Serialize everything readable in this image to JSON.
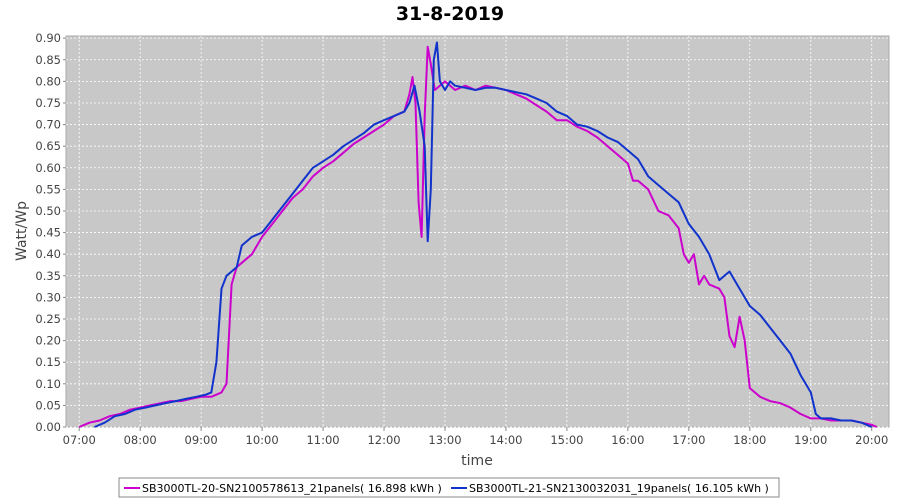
{
  "chart_data": {
    "type": "line",
    "title": "31-8-2019",
    "xlabel": "time",
    "ylabel": "Watt/Wp",
    "x_ticks": [
      "07:00",
      "08:00",
      "09:00",
      "10:00",
      "11:00",
      "12:00",
      "13:00",
      "14:00",
      "15:00",
      "16:00",
      "17:00",
      "18:00",
      "19:00",
      "20:00"
    ],
    "x_range": [
      "06:47",
      "20:17"
    ],
    "y_ticks": [
      "0.00",
      "0.05",
      "0.10",
      "0.15",
      "0.20",
      "0.25",
      "0.30",
      "0.35",
      "0.40",
      "0.45",
      "0.50",
      "0.55",
      "0.60",
      "0.65",
      "0.70",
      "0.75",
      "0.80",
      "0.85",
      "0.90"
    ],
    "ylim": [
      0,
      0.905
    ],
    "grid": true,
    "legend_position": "bottom",
    "series": [
      {
        "name": "SB3000TL-20-SN2100578613_21panels( 16.898 kWh )",
        "color": "#cc00cc",
        "points": [
          [
            "07:00",
            0.0
          ],
          [
            "07:10",
            0.01
          ],
          [
            "07:20",
            0.015
          ],
          [
            "07:30",
            0.025
          ],
          [
            "07:40",
            0.03
          ],
          [
            "07:50",
            0.04
          ],
          [
            "08:00",
            0.045
          ],
          [
            "08:10",
            0.05
          ],
          [
            "08:20",
            0.055
          ],
          [
            "08:30",
            0.06
          ],
          [
            "08:40",
            0.06
          ],
          [
            "08:50",
            0.065
          ],
          [
            "09:00",
            0.07
          ],
          [
            "09:10",
            0.07
          ],
          [
            "09:20",
            0.08
          ],
          [
            "09:25",
            0.1
          ],
          [
            "09:30",
            0.33
          ],
          [
            "09:35",
            0.37
          ],
          [
            "09:40",
            0.38
          ],
          [
            "09:50",
            0.4
          ],
          [
            "10:00",
            0.44
          ],
          [
            "10:10",
            0.47
          ],
          [
            "10:20",
            0.5
          ],
          [
            "10:30",
            0.53
          ],
          [
            "10:40",
            0.55
          ],
          [
            "10:50",
            0.58
          ],
          [
            "11:00",
            0.6
          ],
          [
            "11:10",
            0.615
          ],
          [
            "11:20",
            0.635
          ],
          [
            "11:30",
            0.655
          ],
          [
            "11:40",
            0.67
          ],
          [
            "11:50",
            0.685
          ],
          [
            "12:00",
            0.7
          ],
          [
            "12:10",
            0.72
          ],
          [
            "12:20",
            0.73
          ],
          [
            "12:25",
            0.77
          ],
          [
            "12:28",
            0.81
          ],
          [
            "12:31",
            0.75
          ],
          [
            "12:34",
            0.52
          ],
          [
            "12:37",
            0.44
          ],
          [
            "12:40",
            0.72
          ],
          [
            "12:43",
            0.88
          ],
          [
            "12:46",
            0.84
          ],
          [
            "12:50",
            0.78
          ],
          [
            "13:00",
            0.8
          ],
          [
            "13:10",
            0.78
          ],
          [
            "13:20",
            0.79
          ],
          [
            "13:30",
            0.78
          ],
          [
            "13:40",
            0.79
          ],
          [
            "13:50",
            0.785
          ],
          [
            "14:00",
            0.78
          ],
          [
            "14:10",
            0.77
          ],
          [
            "14:20",
            0.76
          ],
          [
            "14:30",
            0.745
          ],
          [
            "14:40",
            0.73
          ],
          [
            "14:50",
            0.71
          ],
          [
            "15:00",
            0.71
          ],
          [
            "15:10",
            0.695
          ],
          [
            "15:20",
            0.685
          ],
          [
            "15:30",
            0.67
          ],
          [
            "15:40",
            0.65
          ],
          [
            "15:50",
            0.63
          ],
          [
            "16:00",
            0.61
          ],
          [
            "16:05",
            0.57
          ],
          [
            "16:10",
            0.57
          ],
          [
            "16:20",
            0.55
          ],
          [
            "16:30",
            0.5
          ],
          [
            "16:40",
            0.49
          ],
          [
            "16:50",
            0.46
          ],
          [
            "16:55",
            0.4
          ],
          [
            "17:00",
            0.38
          ],
          [
            "17:05",
            0.4
          ],
          [
            "17:10",
            0.33
          ],
          [
            "17:15",
            0.35
          ],
          [
            "17:20",
            0.33
          ],
          [
            "17:30",
            0.32
          ],
          [
            "17:35",
            0.3
          ],
          [
            "17:40",
            0.21
          ],
          [
            "17:45",
            0.185
          ],
          [
            "17:50",
            0.255
          ],
          [
            "17:55",
            0.2
          ],
          [
            "18:00",
            0.09
          ],
          [
            "18:10",
            0.07
          ],
          [
            "18:20",
            0.06
          ],
          [
            "18:30",
            0.055
          ],
          [
            "18:40",
            0.045
          ],
          [
            "18:50",
            0.03
          ],
          [
            "19:00",
            0.02
          ],
          [
            "19:10",
            0.02
          ],
          [
            "19:20",
            0.015
          ],
          [
            "19:30",
            0.015
          ],
          [
            "19:40",
            0.015
          ],
          [
            "19:50",
            0.01
          ],
          [
            "20:00",
            0.005
          ],
          [
            "20:05",
            0.0
          ]
        ]
      },
      {
        "name": "SB3000TL-21-SN2130032031_19panels( 16.105 kWh )",
        "color": "#1133cc",
        "points": [
          [
            "07:15",
            0.0
          ],
          [
            "07:25",
            0.01
          ],
          [
            "07:35",
            0.025
          ],
          [
            "07:45",
            0.03
          ],
          [
            "07:55",
            0.04
          ],
          [
            "08:05",
            0.045
          ],
          [
            "08:15",
            0.05
          ],
          [
            "08:25",
            0.055
          ],
          [
            "08:35",
            0.06
          ],
          [
            "08:45",
            0.065
          ],
          [
            "08:55",
            0.07
          ],
          [
            "09:05",
            0.075
          ],
          [
            "09:10",
            0.08
          ],
          [
            "09:15",
            0.15
          ],
          [
            "09:20",
            0.32
          ],
          [
            "09:25",
            0.35
          ],
          [
            "09:30",
            0.36
          ],
          [
            "09:35",
            0.37
          ],
          [
            "09:40",
            0.42
          ],
          [
            "09:50",
            0.44
          ],
          [
            "10:00",
            0.45
          ],
          [
            "10:10",
            0.48
          ],
          [
            "10:20",
            0.51
          ],
          [
            "10:30",
            0.54
          ],
          [
            "10:40",
            0.57
          ],
          [
            "10:50",
            0.6
          ],
          [
            "11:00",
            0.615
          ],
          [
            "11:10",
            0.63
          ],
          [
            "11:20",
            0.65
          ],
          [
            "11:30",
            0.665
          ],
          [
            "11:40",
            0.68
          ],
          [
            "11:50",
            0.7
          ],
          [
            "12:00",
            0.71
          ],
          [
            "12:10",
            0.72
          ],
          [
            "12:20",
            0.73
          ],
          [
            "12:25",
            0.75
          ],
          [
            "12:30",
            0.79
          ],
          [
            "12:35",
            0.73
          ],
          [
            "12:40",
            0.65
          ],
          [
            "12:43",
            0.43
          ],
          [
            "12:46",
            0.55
          ],
          [
            "12:49",
            0.85
          ],
          [
            "12:52",
            0.89
          ],
          [
            "12:55",
            0.8
          ],
          [
            "13:00",
            0.78
          ],
          [
            "13:05",
            0.8
          ],
          [
            "13:10",
            0.79
          ],
          [
            "13:20",
            0.785
          ],
          [
            "13:30",
            0.78
          ],
          [
            "13:40",
            0.785
          ],
          [
            "13:50",
            0.785
          ],
          [
            "14:00",
            0.78
          ],
          [
            "14:10",
            0.775
          ],
          [
            "14:20",
            0.77
          ],
          [
            "14:30",
            0.76
          ],
          [
            "14:40",
            0.75
          ],
          [
            "14:50",
            0.73
          ],
          [
            "15:00",
            0.72
          ],
          [
            "15:10",
            0.7
          ],
          [
            "15:20",
            0.695
          ],
          [
            "15:30",
            0.685
          ],
          [
            "15:40",
            0.67
          ],
          [
            "15:50",
            0.66
          ],
          [
            "16:00",
            0.64
          ],
          [
            "16:10",
            0.62
          ],
          [
            "16:20",
            0.58
          ],
          [
            "16:30",
            0.56
          ],
          [
            "16:40",
            0.54
          ],
          [
            "16:50",
            0.52
          ],
          [
            "17:00",
            0.47
          ],
          [
            "17:10",
            0.44
          ],
          [
            "17:20",
            0.4
          ],
          [
            "17:30",
            0.34
          ],
          [
            "17:35",
            0.35
          ],
          [
            "17:40",
            0.36
          ],
          [
            "17:50",
            0.32
          ],
          [
            "18:00",
            0.28
          ],
          [
            "18:10",
            0.26
          ],
          [
            "18:20",
            0.23
          ],
          [
            "18:30",
            0.2
          ],
          [
            "18:40",
            0.17
          ],
          [
            "18:50",
            0.12
          ],
          [
            "19:00",
            0.08
          ],
          [
            "19:05",
            0.03
          ],
          [
            "19:10",
            0.02
          ],
          [
            "19:20",
            0.02
          ],
          [
            "19:30",
            0.015
          ],
          [
            "19:40",
            0.015
          ],
          [
            "19:50",
            0.01
          ],
          [
            "20:00",
            0.0
          ]
        ]
      }
    ]
  }
}
